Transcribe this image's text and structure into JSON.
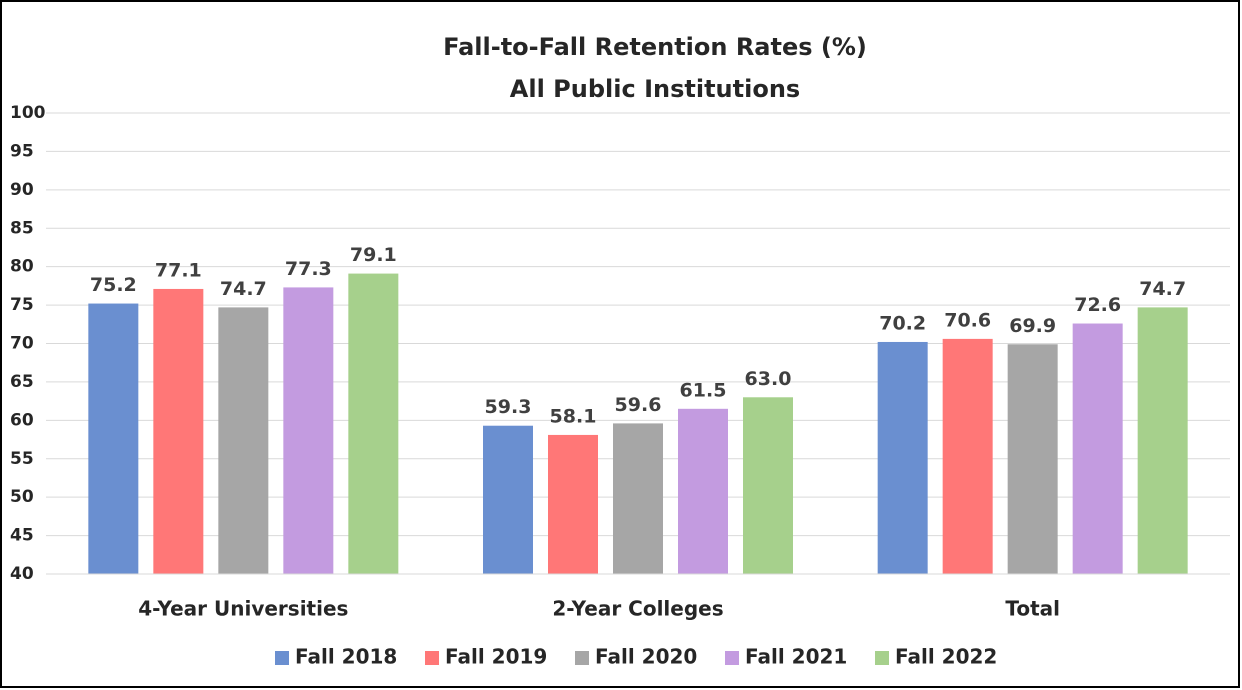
{
  "chart_data": {
    "type": "bar",
    "title": "Fall-to-Fall Retention Rates (%)",
    "subtitle": "All Public Institutions",
    "categories": [
      "4-Year Universities",
      "2-Year Colleges",
      "Total"
    ],
    "series": [
      {
        "name": "Fall 2018",
        "color": "#6a8fd0",
        "values": [
          75.2,
          59.3,
          70.2
        ],
        "value_labels": [
          "75.2",
          "59.3",
          "70.2"
        ]
      },
      {
        "name": "Fall 2019",
        "color": "#ff7777",
        "values": [
          77.1,
          58.1,
          70.6
        ],
        "value_labels": [
          "77.1",
          "58.1",
          "70.6"
        ]
      },
      {
        "name": "Fall 2020",
        "color": "#a6a6a6",
        "values": [
          74.7,
          59.6,
          69.9
        ],
        "value_labels": [
          "74.7",
          "59.6",
          "69.9"
        ]
      },
      {
        "name": "Fall 2021",
        "color": "#c39be0",
        "values": [
          77.3,
          61.5,
          72.6
        ],
        "value_labels": [
          "77.3",
          "61.5",
          "72.6"
        ]
      },
      {
        "name": "Fall 2022",
        "color": "#a6d08c",
        "values": [
          79.1,
          63.0,
          74.7
        ],
        "value_labels": [
          "79.1",
          "63.0",
          "74.7"
        ]
      }
    ],
    "ylim": [
      40,
      100
    ],
    "yticks": [
      40,
      45,
      50,
      55,
      60,
      65,
      70,
      75,
      80,
      85,
      90,
      95,
      100
    ],
    "grid": true,
    "legend": "bottom"
  }
}
